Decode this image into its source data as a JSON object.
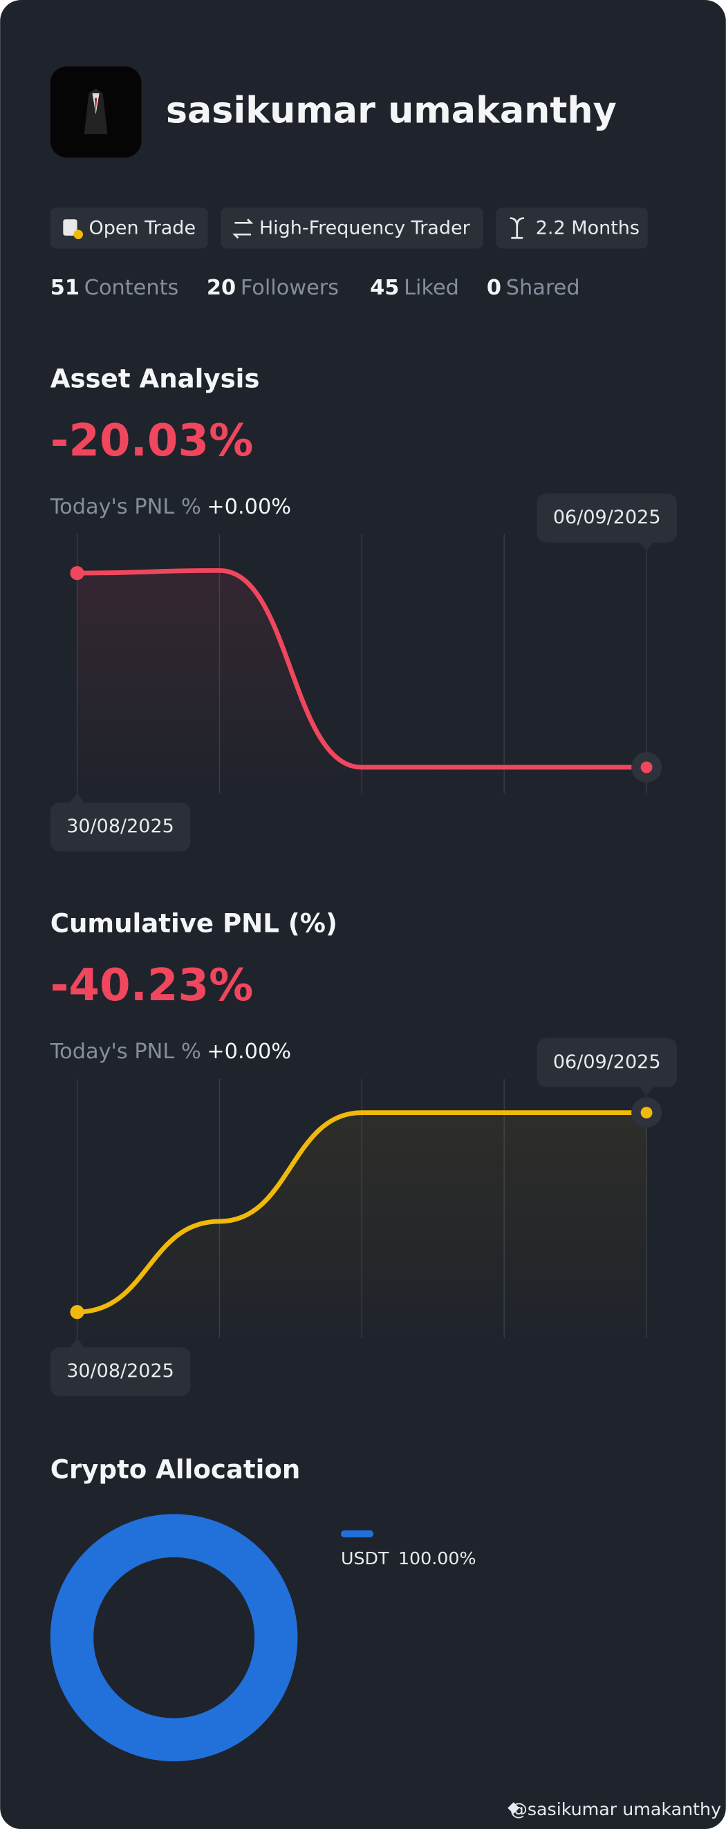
{
  "profile": {
    "name": "sasikumar umakanthy",
    "tags": [
      "Open Trade",
      "High-Frequency Trader",
      "2.2 Months"
    ],
    "stats": [
      {
        "value": 51,
        "label": "Contents"
      },
      {
        "value": 20,
        "label": "Followers"
      },
      {
        "value": 45,
        "label": "Liked"
      },
      {
        "value": 0,
        "label": "Shared"
      }
    ]
  },
  "sections": [
    {
      "title": "Asset Analysis",
      "value": "-20.03%",
      "today_label": "Today's PNL %",
      "today_value": "+0.00%",
      "chart_data": {
        "type": "line",
        "categories": [
          "30/08/2025",
          null,
          null,
          null,
          "06/09/2025"
        ],
        "values": [
          85,
          86,
          10,
          10,
          10
        ],
        "color": "#f0475e",
        "ylim": [
          0,
          100
        ]
      }
    },
    {
      "title": "Cumulative PNL (%)",
      "value": "-40.23%",
      "today_label": "Today's PNL %",
      "today_value": "+0.00%",
      "chart_data": {
        "type": "line",
        "categories": [
          "30/08/2025",
          null,
          null,
          null,
          "06/09/2025"
        ],
        "values": [
          10,
          45,
          87,
          87,
          87
        ],
        "color": "#f0b90b",
        "ylim": [
          0,
          100
        ]
      }
    }
  ],
  "allocation": {
    "title": "Crypto Allocation",
    "chart_data": {
      "type": "pie",
      "categories": [
        "USDT"
      ],
      "values": [
        100
      ],
      "value_labels": [
        "100.00%"
      ],
      "colors": [
        "#2270d9"
      ]
    }
  },
  "footer": "@sasikumar umakanthy"
}
